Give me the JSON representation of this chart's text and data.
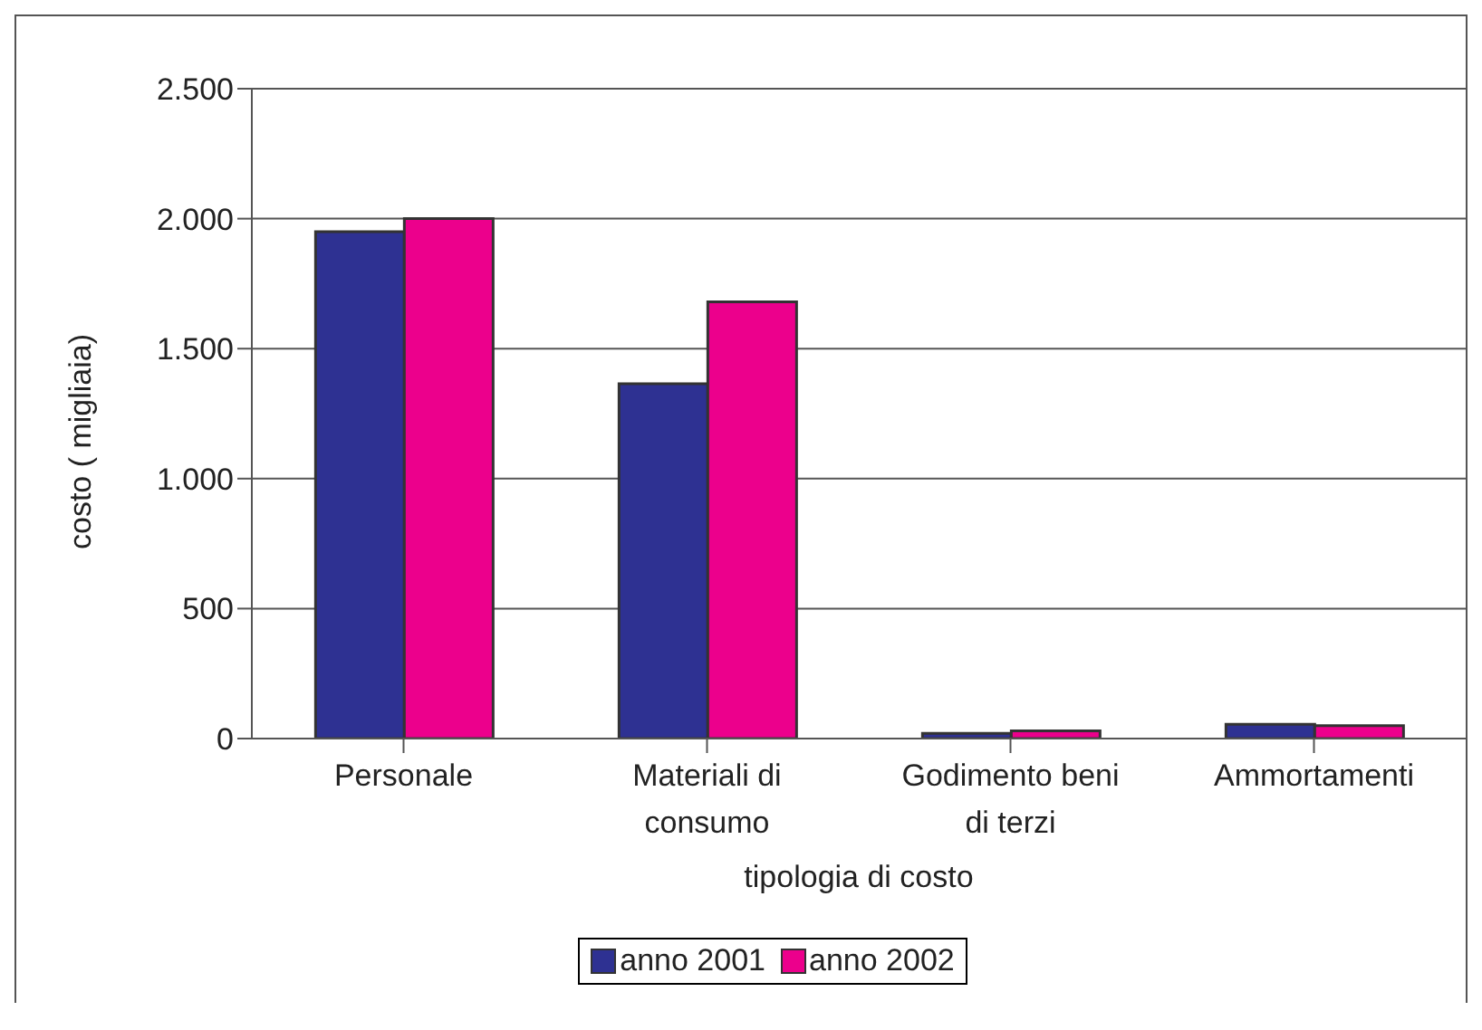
{
  "chart_data": {
    "type": "bar",
    "xlabel": "tipologia di costo",
    "ylabel": "costo ( migliaia)",
    "categories": [
      "Personale",
      "Materiali di consumo",
      "Godimento beni di terzi",
      "Ammortamenti"
    ],
    "series": [
      {
        "name": "anno 2001",
        "color": "#2e3192",
        "values": [
          1950,
          1365,
          20,
          55
        ]
      },
      {
        "name": "anno 2002",
        "color": "#ec008c",
        "values": [
          2000,
          1680,
          30,
          50
        ]
      }
    ],
    "ylim": [
      0,
      2500
    ],
    "yticks": [
      {
        "value": 0,
        "label": "0"
      },
      {
        "value": 500,
        "label": "500"
      },
      {
        "value": 1000,
        "label": "1.000"
      },
      {
        "value": 1500,
        "label": "1.500"
      },
      {
        "value": 2000,
        "label": "2.000"
      },
      {
        "value": 2500,
        "label": "2.500"
      }
    ],
    "grid": "y",
    "legend": "bottom"
  }
}
